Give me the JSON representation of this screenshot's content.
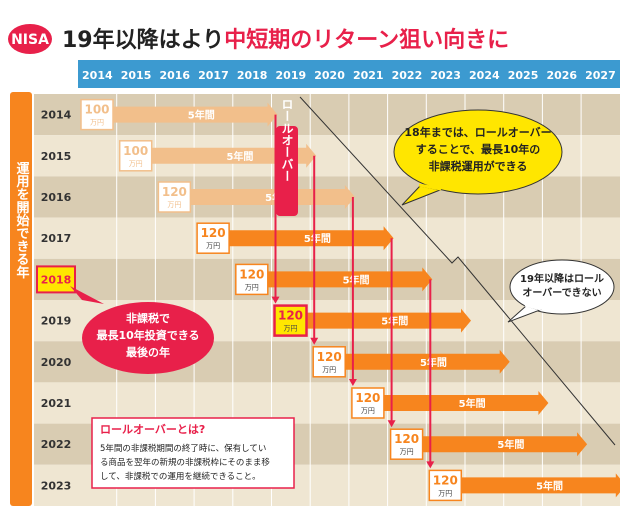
{
  "header": {
    "badge": "NISA",
    "title_plain": "19年以降はより",
    "title_emphasis": "中短期のリターン狙い向きに"
  },
  "years": [
    "2014",
    "2015",
    "2016",
    "2017",
    "2018",
    "2019",
    "2020",
    "2021",
    "2022",
    "2023",
    "2024",
    "2025",
    "2026",
    "2027"
  ],
  "side_label": "運用を開始できる年",
  "rows": [
    {
      "year": "2014",
      "amount": "100",
      "unit": "万円",
      "span": "5年間",
      "faded": true
    },
    {
      "year": "2015",
      "amount": "100",
      "unit": "万円",
      "span": "5年間",
      "faded": true
    },
    {
      "year": "2016",
      "amount": "120",
      "unit": "万円",
      "span": "5年間",
      "faded": true
    },
    {
      "year": "2017",
      "amount": "120",
      "unit": "万円",
      "span": "5年間",
      "faded": false
    },
    {
      "year": "2018",
      "amount": "120",
      "unit": "万円",
      "span": "5年間",
      "faded": false
    },
    {
      "year": "2019",
      "amount": "120",
      "unit": "万円",
      "span": "5年間",
      "faded": false
    },
    {
      "year": "2020",
      "amount": "120",
      "unit": "万円",
      "span": "5年間",
      "faded": false
    },
    {
      "year": "2021",
      "amount": "120",
      "unit": "万円",
      "span": "5年間",
      "faded": false
    },
    {
      "year": "2022",
      "amount": "120",
      "unit": "万円",
      "span": "5年間",
      "faded": false
    },
    {
      "year": "2023",
      "amount": "120",
      "unit": "万円",
      "span": "5年間",
      "faded": false
    }
  ],
  "highlight_year": "2018",
  "rollover_label": "ロールオーバー",
  "callouts": {
    "yellow": [
      "18年までは、ロールオーバー",
      "することで、最長10年の",
      "非課税運用ができる"
    ],
    "white": [
      "19年以降はロール",
      "オーバーできない"
    ],
    "red": [
      "非課税で",
      "最長10年投資できる",
      "最後の年"
    ]
  },
  "definition": {
    "title": "ロールオーバーとは?",
    "lines": [
      "5年間の非課税期間の終了時に、保有してい",
      "る商品を翌年の新規の非課税枠にそのまま移",
      "して、非課税での運用を継続できること。"
    ]
  },
  "colors": {
    "header_bg": "#3c9ad0",
    "badge": "#e8204a",
    "title_red": "#e8204a",
    "beige_dark": "#d9ccb2",
    "beige_light": "#efe6d2",
    "orange": "#f7851e",
    "orange_faded": "#f2bf8b",
    "red": "#e8204a",
    "yellow": "#ffe600",
    "side_bar": "#f7851e"
  }
}
